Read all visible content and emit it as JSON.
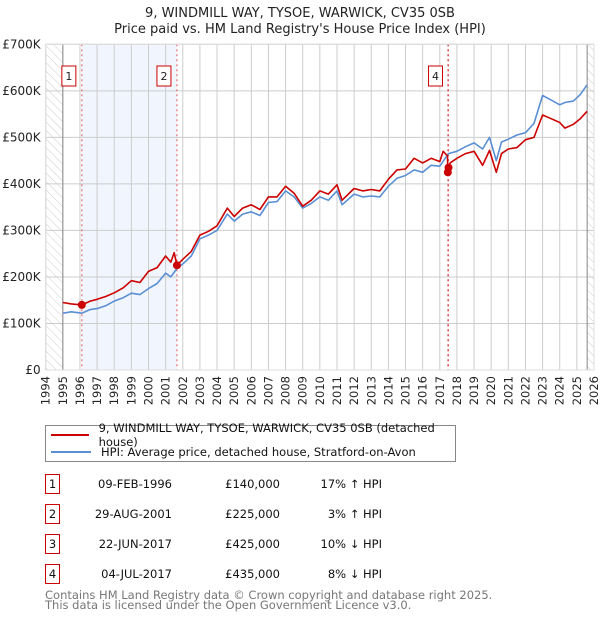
{
  "chart_data": {
    "type": "line",
    "title": "9, WINDMILL WAY, TYSOE, WARWICK, CV35 0SB",
    "subtitle": "Price paid vs. HM Land Registry's House Price Index (HPI)",
    "xlim": [
      1994,
      2026
    ],
    "ylim": [
      0,
      700000
    ],
    "x_ticks": [
      "1994",
      "1995",
      "1996",
      "1997",
      "1998",
      "1999",
      "2000",
      "2001",
      "2002",
      "2003",
      "2004",
      "2005",
      "2006",
      "2007",
      "2008",
      "2009",
      "2010",
      "2011",
      "2012",
      "2013",
      "2014",
      "2015",
      "2016",
      "2017",
      "2018",
      "2019",
      "2020",
      "2021",
      "2022",
      "2023",
      "2024",
      "2025",
      "2026"
    ],
    "y_ticks": [
      {
        "v": 0,
        "label": "£0"
      },
      {
        "v": 100000,
        "label": "£100K"
      },
      {
        "v": 200000,
        "label": "£200K"
      },
      {
        "v": 300000,
        "label": "£300K"
      },
      {
        "v": 400000,
        "label": "£400K"
      },
      {
        "v": 500000,
        "label": "£500K"
      },
      {
        "v": 600000,
        "label": "£600K"
      },
      {
        "v": 700000,
        "label": "£700K"
      }
    ],
    "grid": true,
    "data_start": 1995.0,
    "data_end": 2025.6,
    "shaded_range": [
      1996.11,
      2001.66
    ],
    "series": [
      {
        "name": "9, WINDMILL WAY, TYSOE, WARWICK, CV35 0SB (detached house)",
        "color": "#cc0000",
        "x": [
          1995,
          1995.5,
          1996.11,
          1996.6,
          1997,
          1997.5,
          1998,
          1998.5,
          1999,
          1999.5,
          2000,
          2000.5,
          2001,
          2001.3,
          2001.5,
          2001.66,
          2002,
          2002.5,
          2003,
          2003.5,
          2004,
          2004.6,
          2005,
          2005.5,
          2006,
          2006.5,
          2007,
          2007.5,
          2008,
          2008.5,
          2009,
          2009.5,
          2010,
          2010.5,
          2011,
          2011.3,
          2012,
          2012.5,
          2013,
          2013.5,
          2014,
          2014.5,
          2015,
          2015.5,
          2016,
          2016.5,
          2017,
          2017.2,
          2017.45,
          2017.47,
          2017.6,
          2018,
          2018.5,
          2019,
          2019.5,
          2019.9,
          2020.3,
          2020.6,
          2021,
          2021.5,
          2022,
          2022.5,
          2023,
          2023.5,
          2024,
          2024.3,
          2024.8,
          2025.2,
          2025.6
        ],
        "y": [
          145000,
          142000,
          140000,
          148000,
          152000,
          158000,
          166000,
          176000,
          192000,
          188000,
          212000,
          220000,
          245000,
          232000,
          252000,
          225000,
          238000,
          255000,
          290000,
          298000,
          310000,
          348000,
          330000,
          348000,
          355000,
          345000,
          372000,
          372000,
          395000,
          380000,
          352000,
          365000,
          385000,
          378000,
          398000,
          365000,
          390000,
          385000,
          388000,
          385000,
          410000,
          430000,
          432000,
          455000,
          445000,
          455000,
          448000,
          470000,
          460000,
          425000,
          445000,
          455000,
          465000,
          470000,
          440000,
          472000,
          425000,
          465000,
          475000,
          478000,
          495000,
          500000,
          548000,
          540000,
          532000,
          520000,
          528000,
          540000,
          556000
        ]
      },
      {
        "name": "HPI: Average price, detached house, Stratford-on-Avon",
        "color": "#5b8fd4",
        "x": [
          1995,
          1995.5,
          1996.11,
          1996.6,
          1997,
          1997.5,
          1998,
          1998.5,
          1999,
          1999.5,
          2000,
          2000.5,
          2001,
          2001.3,
          2001.66,
          2002,
          2002.5,
          2003,
          2003.5,
          2004,
          2004.6,
          2005,
          2005.5,
          2006,
          2006.5,
          2007,
          2007.5,
          2008,
          2008.5,
          2009,
          2009.5,
          2010,
          2010.5,
          2011,
          2011.3,
          2012,
          2012.5,
          2013,
          2013.5,
          2014,
          2014.5,
          2015,
          2015.5,
          2016,
          2016.5,
          2017,
          2017.5,
          2018,
          2018.5,
          2019,
          2019.5,
          2019.9,
          2020.3,
          2020.6,
          2021,
          2021.5,
          2022,
          2022.5,
          2023,
          2023.5,
          2024,
          2024.3,
          2024.8,
          2025.2,
          2025.6
        ],
        "y": [
          122000,
          125000,
          122000,
          130000,
          132000,
          138000,
          148000,
          155000,
          165000,
          162000,
          175000,
          186000,
          208000,
          200000,
          218000,
          228000,
          245000,
          282000,
          290000,
          300000,
          335000,
          320000,
          335000,
          340000,
          332000,
          360000,
          362000,
          385000,
          372000,
          348000,
          358000,
          372000,
          365000,
          385000,
          355000,
          378000,
          372000,
          374000,
          372000,
          395000,
          412000,
          418000,
          430000,
          425000,
          440000,
          438000,
          465000,
          470000,
          480000,
          488000,
          475000,
          500000,
          450000,
          490000,
          496000,
          505000,
          510000,
          530000,
          590000,
          580000,
          570000,
          575000,
          578000,
          592000,
          613000
        ]
      }
    ],
    "sales": [
      {
        "num": "1",
        "x": 1996.11,
        "price": 140000
      },
      {
        "num": "2",
        "x": 2001.66,
        "price": 225000
      },
      {
        "num": "3",
        "x": 2017.47,
        "price": 425000
      },
      {
        "num": "4",
        "x": 2017.51,
        "price": 435000
      }
    ],
    "marker_labels_shown": [
      "1",
      "2",
      "4"
    ]
  },
  "legend": [
    {
      "label": "9, WINDMILL WAY, TYSOE, WARWICK, CV35 0SB (detached house)",
      "color": "#cc0000"
    },
    {
      "label": "HPI: Average price, detached house, Stratford-on-Avon",
      "color": "#5b8fd4"
    }
  ],
  "table": [
    {
      "num": "1",
      "date": "09-FEB-1996",
      "price": "£140,000",
      "pct": "17% ↑ HPI"
    },
    {
      "num": "2",
      "date": "29-AUG-2001",
      "price": "£225,000",
      "pct": "3% ↑ HPI"
    },
    {
      "num": "3",
      "date": "22-JUN-2017",
      "price": "£425,000",
      "pct": "10% ↓ HPI"
    },
    {
      "num": "4",
      "date": "04-JUL-2017",
      "price": "£435,000",
      "pct": "8% ↓ HPI"
    }
  ],
  "footer": {
    "line1": "Contains HM Land Registry data © Crown copyright and database right 2025.",
    "line2": "This data is licensed under the Open Government Licence v3.0."
  }
}
